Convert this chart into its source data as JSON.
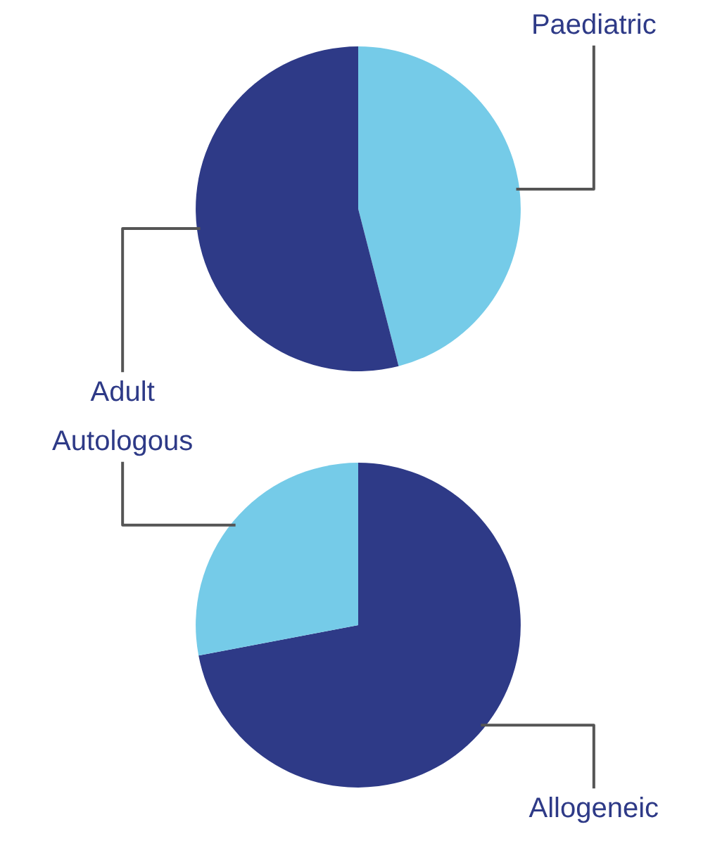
{
  "chart_data": [
    {
      "type": "pie",
      "categories": [
        "Paediatric",
        "Adult"
      ],
      "values": [
        46,
        54
      ],
      "colors": [
        "#75cbe8",
        "#2e3a87"
      ]
    },
    {
      "type": "pie",
      "categories": [
        "Allogeneic",
        "Autologous"
      ],
      "values": [
        72,
        28
      ],
      "colors": [
        "#2e3a87",
        "#75cbe8"
      ]
    }
  ]
}
